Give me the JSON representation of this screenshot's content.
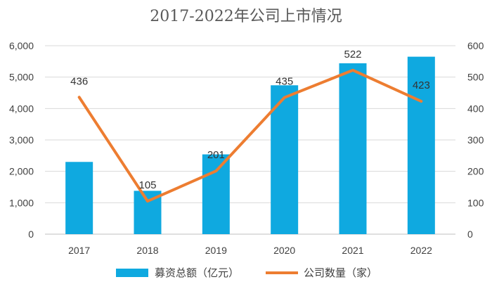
{
  "chart_data": {
    "type": "bar",
    "title": "2017-2022年公司上市情况",
    "categories": [
      "2017",
      "2018",
      "2019",
      "2020",
      "2021",
      "2022"
    ],
    "series": [
      {
        "name": "募资总额（亿元）",
        "type": "bar",
        "axis": "left",
        "color": "#0FA9E0",
        "values": [
          2300,
          1380,
          2540,
          4740,
          5440,
          5650
        ]
      },
      {
        "name": "公司数量（家）",
        "type": "line",
        "axis": "right",
        "color": "#ED7D31",
        "values": [
          436,
          105,
          201,
          435,
          522,
          423
        ],
        "data_labels": [
          "436",
          "105",
          "201",
          "435",
          "522",
          "423"
        ]
      }
    ],
    "y_left": {
      "ylim": [
        0,
        6000
      ],
      "ticks": [
        0,
        1000,
        2000,
        3000,
        4000,
        5000,
        6000
      ],
      "tick_labels": [
        "0",
        "1,000",
        "2,000",
        "3,000",
        "4,000",
        "5,000",
        "6,000"
      ]
    },
    "y_right": {
      "ylim": [
        0,
        600
      ],
      "ticks": [
        0,
        100,
        200,
        300,
        400,
        500,
        600
      ],
      "tick_labels": [
        "0",
        "100",
        "200",
        "300",
        "400",
        "500",
        "600"
      ]
    },
    "grid": true,
    "legend": "bottom"
  }
}
